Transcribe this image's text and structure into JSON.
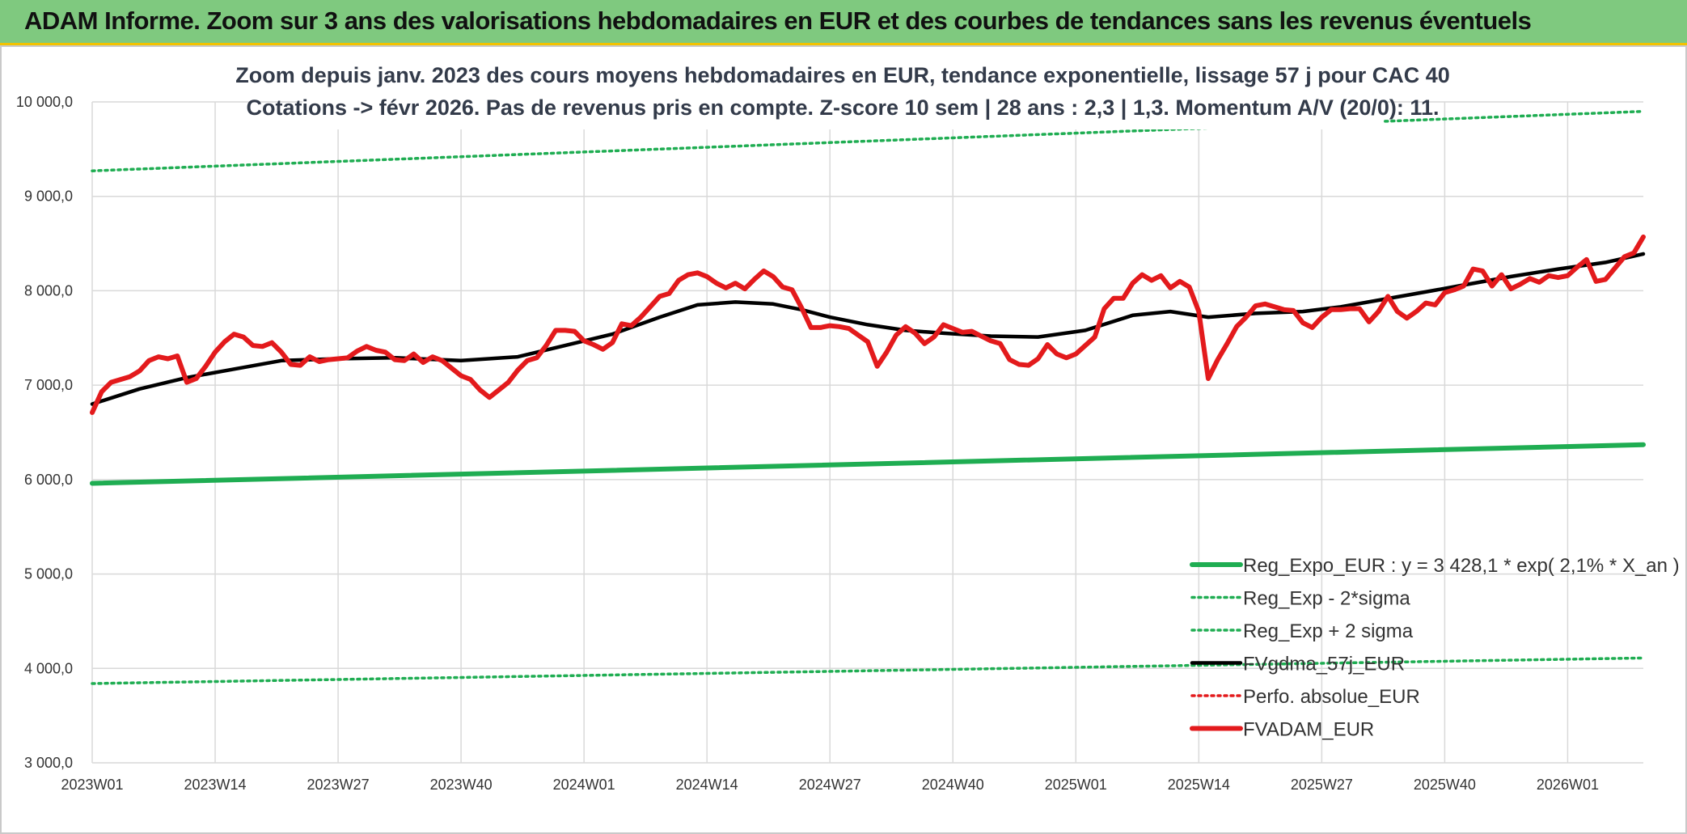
{
  "header": {
    "title": "ADAM Informe. Zoom sur 3 ans des valorisations hebdomadaires en EUR et des courbes de tendances sans les revenus éventuels"
  },
  "chart_data": {
    "type": "line",
    "subtitle_lines": [
      "Zoom depuis janv. 2023 des cours moyens hebdomadaires en EUR, tendance exponentielle, lissage 57 j pour CAC 40",
      "Cotations -> févr 2026. Pas de revenus pris en compte. Z-score 10 sem | 28 ans : 2,3 | 1,3. Momentum A/V (20/0): 11."
    ],
    "ylim": [
      3000,
      10000
    ],
    "y_ticks": [
      3000,
      4000,
      5000,
      6000,
      7000,
      8000,
      9000,
      10000
    ],
    "y_tick_labels": [
      "3 000,0",
      "4 000,0",
      "5 000,0",
      "6 000,0",
      "7 000,0",
      "8 000,0",
      "9 000,0",
      "10 000,0"
    ],
    "x_ticks": [
      0,
      13,
      26,
      39,
      52,
      65,
      78,
      91,
      104,
      117,
      130,
      143,
      156
    ],
    "x_tick_labels": [
      "2023W01",
      "2023W14",
      "2023W27",
      "2023W40",
      "2024W01",
      "2024W14",
      "2024W27",
      "2024W40",
      "2025W01",
      "2025W14",
      "2025W27",
      "2025W40",
      "2026W01"
    ],
    "x_range": [
      0,
      164
    ],
    "grid": true,
    "legend_position": "bottom-right",
    "series": [
      {
        "name": "Reg_Expo_EUR : y = 3 428,1 * exp( 2,1% *  X_an )",
        "color": "#1fad52",
        "style": "solid-thick",
        "points": [
          [
            0,
            5960
          ],
          [
            164,
            6370
          ]
        ]
      },
      {
        "name": "Reg_Exp - 2*sigma",
        "color": "#1fad52",
        "style": "dotted",
        "points": [
          [
            0,
            3840
          ],
          [
            164,
            4110
          ]
        ]
      },
      {
        "name": "Reg_Exp + 2 sigma",
        "color": "#1fad52",
        "style": "dotted",
        "points": [
          [
            0,
            9270
          ],
          [
            164,
            9900
          ]
        ]
      },
      {
        "name": "FVgdma_57j_EUR",
        "color": "#000000",
        "style": "solid",
        "points": [
          [
            0,
            6800
          ],
          [
            5,
            6960
          ],
          [
            10,
            7080
          ],
          [
            15,
            7170
          ],
          [
            20,
            7260
          ],
          [
            26,
            7280
          ],
          [
            32,
            7290
          ],
          [
            39,
            7260
          ],
          [
            45,
            7300
          ],
          [
            50,
            7420
          ],
          [
            55,
            7540
          ],
          [
            60,
            7720
          ],
          [
            64,
            7850
          ],
          [
            68,
            7880
          ],
          [
            72,
            7860
          ],
          [
            75,
            7800
          ],
          [
            78,
            7720
          ],
          [
            82,
            7640
          ],
          [
            86,
            7580
          ],
          [
            90,
            7550
          ],
          [
            95,
            7520
          ],
          [
            100,
            7510
          ],
          [
            105,
            7580
          ],
          [
            110,
            7740
          ],
          [
            114,
            7780
          ],
          [
            118,
            7720
          ],
          [
            123,
            7760
          ],
          [
            128,
            7780
          ],
          [
            132,
            7830
          ],
          [
            136,
            7900
          ],
          [
            140,
            7970
          ],
          [
            145,
            8060
          ],
          [
            150,
            8150
          ],
          [
            155,
            8230
          ],
          [
            160,
            8300
          ],
          [
            164,
            8390
          ]
        ]
      },
      {
        "name": "Perfo. absolue_EUR",
        "color": "#e31a1c",
        "style": "dotted",
        "points": []
      },
      {
        "name": "FVADAM_EUR",
        "color": "#e31a1c",
        "style": "solid-thick",
        "points": [
          [
            0,
            6710
          ],
          [
            1,
            6930
          ],
          [
            2,
            7030
          ],
          [
            3,
            7060
          ],
          [
            4,
            7090
          ],
          [
            5,
            7150
          ],
          [
            6,
            7260
          ],
          [
            7,
            7300
          ],
          [
            8,
            7280
          ],
          [
            9,
            7310
          ],
          [
            10,
            7030
          ],
          [
            11,
            7070
          ],
          [
            12,
            7200
          ],
          [
            13,
            7350
          ],
          [
            14,
            7460
          ],
          [
            15,
            7540
          ],
          [
            16,
            7510
          ],
          [
            17,
            7420
          ],
          [
            18,
            7410
          ],
          [
            19,
            7450
          ],
          [
            20,
            7350
          ],
          [
            21,
            7220
          ],
          [
            22,
            7210
          ],
          [
            23,
            7300
          ],
          [
            24,
            7250
          ],
          [
            25,
            7270
          ],
          [
            26,
            7280
          ],
          [
            27,
            7290
          ],
          [
            28,
            7360
          ],
          [
            29,
            7410
          ],
          [
            30,
            7370
          ],
          [
            31,
            7350
          ],
          [
            32,
            7270
          ],
          [
            33,
            7260
          ],
          [
            34,
            7330
          ],
          [
            35,
            7240
          ],
          [
            36,
            7300
          ],
          [
            37,
            7260
          ],
          [
            38,
            7180
          ],
          [
            39,
            7100
          ],
          [
            40,
            7060
          ],
          [
            41,
            6950
          ],
          [
            42,
            6870
          ],
          [
            43,
            6950
          ],
          [
            44,
            7030
          ],
          [
            45,
            7160
          ],
          [
            46,
            7260
          ],
          [
            47,
            7290
          ],
          [
            48,
            7420
          ],
          [
            49,
            7580
          ],
          [
            50,
            7580
          ],
          [
            51,
            7570
          ],
          [
            52,
            7470
          ],
          [
            53,
            7430
          ],
          [
            54,
            7380
          ],
          [
            55,
            7450
          ],
          [
            56,
            7650
          ],
          [
            57,
            7630
          ],
          [
            58,
            7720
          ],
          [
            59,
            7830
          ],
          [
            60,
            7940
          ],
          [
            61,
            7970
          ],
          [
            62,
            8110
          ],
          [
            63,
            8170
          ],
          [
            64,
            8190
          ],
          [
            65,
            8150
          ],
          [
            66,
            8080
          ],
          [
            67,
            8030
          ],
          [
            68,
            8080
          ],
          [
            69,
            8020
          ],
          [
            70,
            8120
          ],
          [
            71,
            8210
          ],
          [
            72,
            8150
          ],
          [
            73,
            8040
          ],
          [
            74,
            8010
          ],
          [
            75,
            7820
          ],
          [
            76,
            7610
          ],
          [
            77,
            7610
          ],
          [
            78,
            7630
          ],
          [
            79,
            7620
          ],
          [
            80,
            7600
          ],
          [
            81,
            7530
          ],
          [
            82,
            7460
          ],
          [
            83,
            7200
          ],
          [
            84,
            7350
          ],
          [
            85,
            7530
          ],
          [
            86,
            7620
          ],
          [
            87,
            7550
          ],
          [
            88,
            7440
          ],
          [
            89,
            7510
          ],
          [
            90,
            7640
          ],
          [
            91,
            7600
          ],
          [
            92,
            7560
          ],
          [
            93,
            7570
          ],
          [
            94,
            7520
          ],
          [
            95,
            7470
          ],
          [
            96,
            7440
          ],
          [
            97,
            7270
          ],
          [
            98,
            7220
          ],
          [
            99,
            7210
          ],
          [
            100,
            7280
          ],
          [
            101,
            7430
          ],
          [
            102,
            7330
          ],
          [
            103,
            7290
          ],
          [
            104,
            7330
          ],
          [
            105,
            7420
          ],
          [
            106,
            7510
          ],
          [
            107,
            7810
          ],
          [
            108,
            7920
          ],
          [
            109,
            7920
          ],
          [
            110,
            8080
          ],
          [
            111,
            8170
          ],
          [
            112,
            8110
          ],
          [
            113,
            8160
          ],
          [
            114,
            8030
          ],
          [
            115,
            8100
          ],
          [
            116,
            8040
          ],
          [
            117,
            7780
          ],
          [
            118,
            7070
          ],
          [
            119,
            7270
          ],
          [
            120,
            7440
          ],
          [
            121,
            7620
          ],
          [
            122,
            7720
          ],
          [
            123,
            7840
          ],
          [
            124,
            7860
          ],
          [
            125,
            7830
          ],
          [
            126,
            7800
          ],
          [
            127,
            7790
          ],
          [
            128,
            7660
          ],
          [
            129,
            7610
          ],
          [
            130,
            7720
          ],
          [
            131,
            7800
          ],
          [
            132,
            7800
          ],
          [
            133,
            7810
          ],
          [
            134,
            7810
          ],
          [
            135,
            7670
          ],
          [
            136,
            7780
          ],
          [
            137,
            7940
          ],
          [
            138,
            7780
          ],
          [
            139,
            7710
          ],
          [
            140,
            7780
          ],
          [
            141,
            7870
          ],
          [
            142,
            7850
          ],
          [
            143,
            7980
          ],
          [
            144,
            8010
          ],
          [
            145,
            8050
          ],
          [
            146,
            8230
          ],
          [
            147,
            8210
          ],
          [
            148,
            8050
          ],
          [
            149,
            8170
          ],
          [
            150,
            8020
          ],
          [
            151,
            8070
          ],
          [
            152,
            8130
          ],
          [
            153,
            8090
          ],
          [
            154,
            8160
          ],
          [
            155,
            8140
          ],
          [
            156,
            8160
          ],
          [
            157,
            8250
          ],
          [
            158,
            8330
          ],
          [
            159,
            8100
          ],
          [
            160,
            8120
          ],
          [
            161,
            8240
          ],
          [
            162,
            8360
          ],
          [
            163,
            8400
          ],
          [
            164,
            8570
          ]
        ]
      }
    ]
  }
}
